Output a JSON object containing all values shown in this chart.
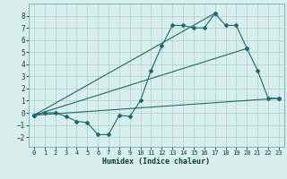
{
  "title": "",
  "xlabel": "Humidex (Indice chaleur)",
  "ylabel": "",
  "background_color": "#d7eeec",
  "grid_color": "#aacfcb",
  "line_color": "#1a6b6b",
  "xlim": [
    -0.5,
    23.5
  ],
  "ylim": [
    -2.8,
    9.0
  ],
  "xticks": [
    0,
    1,
    2,
    3,
    4,
    5,
    6,
    7,
    8,
    9,
    10,
    11,
    12,
    13,
    14,
    15,
    16,
    17,
    18,
    19,
    20,
    21,
    22,
    23
  ],
  "yticks": [
    -2,
    -1,
    0,
    1,
    2,
    3,
    4,
    5,
    6,
    7,
    8
  ],
  "series": [
    [
      0,
      -0.2
    ],
    [
      1,
      0.0
    ],
    [
      2,
      0.0
    ],
    [
      3,
      -0.3
    ],
    [
      4,
      -0.7
    ],
    [
      5,
      -0.8
    ],
    [
      6,
      -1.8
    ],
    [
      7,
      -1.8
    ],
    [
      8,
      -0.2
    ],
    [
      9,
      -0.3
    ],
    [
      10,
      1.0
    ],
    [
      11,
      3.5
    ],
    [
      12,
      5.5
    ],
    [
      13,
      7.2
    ],
    [
      14,
      7.2
    ],
    [
      15,
      7.0
    ],
    [
      16,
      7.0
    ],
    [
      17,
      8.2
    ],
    [
      18,
      7.2
    ],
    [
      19,
      7.2
    ],
    [
      20,
      5.3
    ],
    [
      21,
      3.5
    ],
    [
      22,
      1.2
    ],
    [
      23,
      1.2
    ]
  ],
  "line2": [
    [
      0,
      -0.2
    ],
    [
      23,
      1.2
    ]
  ],
  "line3": [
    [
      0,
      -0.2
    ],
    [
      20,
      5.3
    ]
  ],
  "line4": [
    [
      0,
      -0.2
    ],
    [
      17,
      8.2
    ]
  ]
}
